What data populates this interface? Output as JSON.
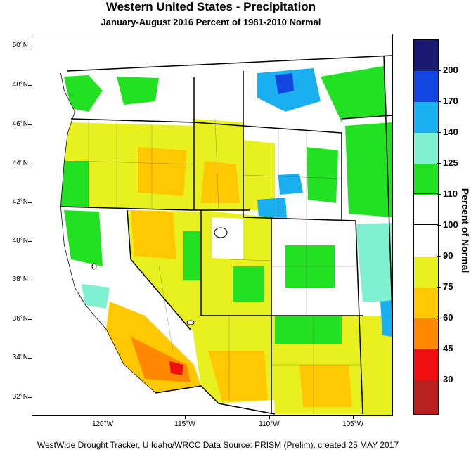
{
  "title": "Western United States - Precipitation",
  "subtitle": "January-August 2016  Percent of 1981-2010 Normal",
  "footer": "WestWide Drought Tracker, U Idaho/WRCC Data Source: PRISM (Prelim), created 25 MAY 2017",
  "lat_labels": [
    "50°N",
    "48°N",
    "46°N",
    "44°N",
    "42°N",
    "40°N",
    "38°N",
    "36°N",
    "34°N",
    "32°N"
  ],
  "lon_labels": [
    "120°W",
    "115°W",
    "110°W",
    "105°W"
  ],
  "colorbar": {
    "title": "Percent of Normal",
    "labels": [
      "200",
      "170",
      "140",
      "125",
      "110",
      "100",
      "90",
      "75",
      "60",
      "45",
      "30"
    ],
    "colors": [
      "#1a1a70",
      "#1246e0",
      "#1ab0f0",
      "#7ff0d0",
      "#22e022",
      "#ffffff",
      "#ffffff",
      "#e8f020",
      "#ffc800",
      "#ff8800",
      "#ee1010",
      "#b82020"
    ]
  },
  "colors": {
    "map_background": "#ffffff",
    "water_light": "#ffffff"
  }
}
